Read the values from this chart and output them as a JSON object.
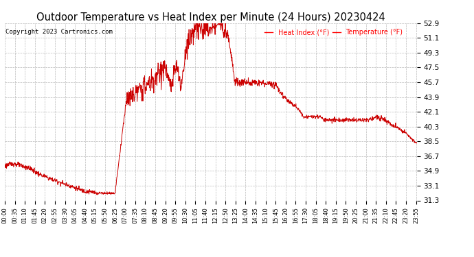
{
  "title": "Outdoor Temperature vs Heat Index per Minute (24 Hours) 20230424",
  "copyright": "Copyright 2023 Cartronics.com",
  "legend_labels": [
    "Heat Index (°F)",
    "Temperature (°F)"
  ],
  "legend_color": "#ff0000",
  "line_color": "#cc0000",
  "background_color": "#ffffff",
  "grid_color": "#bbbbbb",
  "title_fontsize": 10.5,
  "ylim": [
    31.3,
    52.9
  ],
  "yticks": [
    31.3,
    33.1,
    34.9,
    36.7,
    38.5,
    40.3,
    42.1,
    43.9,
    45.7,
    47.5,
    49.3,
    51.1,
    52.9
  ],
  "x_tick_interval": 35,
  "total_minutes": 1440
}
